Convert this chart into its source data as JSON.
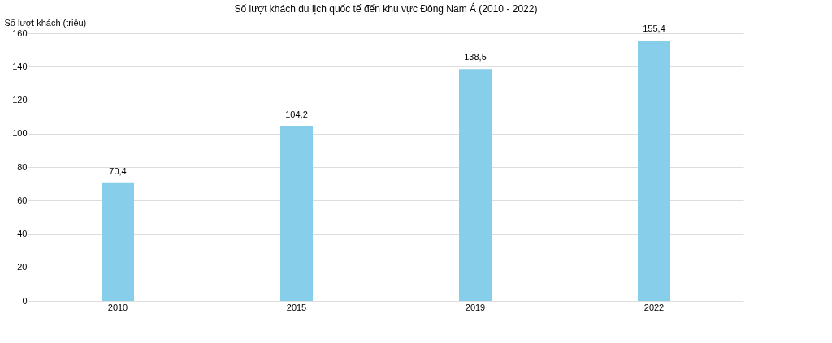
{
  "chart_data": {
    "type": "bar",
    "title": "Số lượt khách du lịch quốc tế đến khu vực Đông Nam Á (2010 - 2022)",
    "ylabel": "Số lượt khách (triệu)",
    "categories": [
      "2010",
      "2015",
      "2019",
      "2022"
    ],
    "values": [
      70.4,
      104.2,
      138.5,
      155.4
    ],
    "value_labels": [
      "70,4",
      "104,2",
      "138,5",
      "155,4"
    ],
    "color": "#87ceeb",
    "ylim": [
      0,
      160
    ],
    "yticks": [
      0,
      20,
      40,
      60,
      80,
      100,
      120,
      140,
      160
    ],
    "grid": "y"
  }
}
